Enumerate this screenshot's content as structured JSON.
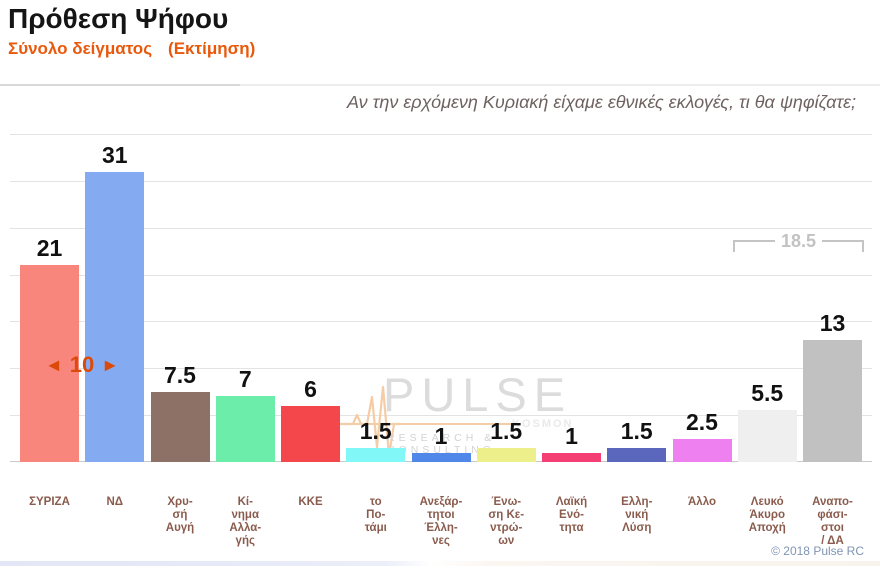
{
  "header": {
    "title": "Πρόθεση Ψήφου",
    "subtitle": "Σύνολο δείγματος",
    "subtitle_note": "(Εκτίμηση)"
  },
  "chart_data": {
    "type": "bar",
    "title": "Πρόθεση Ψήφου",
    "subtitle": "Σύνολο δείγματος (Εκτίμηση)",
    "question": "Αν την ερχόμενη Κυριακή είχαμε εθνικές εκλογές, τι θα ψηφίζατε;",
    "ylim": [
      0,
      35
    ],
    "gridline_step": 5,
    "grid": true,
    "categories": [
      "ΣΥΡΙΖΑ",
      "ΝΔ",
      "Χρυσή Αυγή",
      "Κίνημα Αλλαγής",
      "ΚΚΕ",
      "το Ποτάμι",
      "Ανεξάρτητοι Έλληνες",
      "Ένωση Κεντρώων",
      "Λαϊκή Ενότητα",
      "Ελληνική Λύση",
      "Άλλο",
      "Λευκό Άκυρο Αποχή",
      "Αναποφάσιστοι / ΔΑ"
    ],
    "x_tick_lines": [
      "ΣΥΡΙΖΑ",
      "ΝΔ",
      "Χρυ-\nσή\nΑυγή",
      "Κί-\nνημα\nΑλλα-\nγής",
      "ΚΚΕ",
      "το\nΠο-\nτάμι",
      "Ανεξάρ-\nτητοι\nΈλλη-\nνες",
      "Ένω-\nση Κε-\nντρώ-\nων",
      "Λαϊκή\nΕνό-\nτητα",
      "Ελλη-\nνική\nΛύση",
      "Άλλο",
      "Λευκό\nΆκυρο\nΑποχή",
      "Αναπο-\nφάσι-\nστοι\n/ ΔΑ"
    ],
    "values": [
      21,
      31,
      7.5,
      7,
      6,
      1.5,
      1,
      1.5,
      1,
      1.5,
      2.5,
      5.5,
      13
    ],
    "value_labels": [
      "21",
      "31",
      "7.5",
      "7",
      "6",
      "1.5",
      "1",
      "1.5",
      "1",
      "1.5",
      "2.5",
      "5.5",
      "13"
    ],
    "bar_colors": [
      "#F9867C",
      "#84ABF2",
      "#8D7166",
      "#6DEDAA",
      "#F4474B",
      "#82F7F7",
      "#5187E8",
      "#EDF08A",
      "#F43E74",
      "#5A67BD",
      "#EE80F0",
      "#EFEFEF",
      "#C1C1C1"
    ],
    "annotations": {
      "lead_gap": {
        "text": "10",
        "left_arrow": "◄",
        "right_arrow": "►",
        "color": "#DC4A0A"
      },
      "bracket_sum": {
        "text": "18.5",
        "color": "#C2C2C2"
      }
    }
  },
  "watermark": {
    "brand": "PULSE",
    "sub_brand": "KOSMON",
    "tagline": "RESEARCH & CONSULTING"
  },
  "footer": {
    "copyright": "© 2018 Pulse RC"
  }
}
